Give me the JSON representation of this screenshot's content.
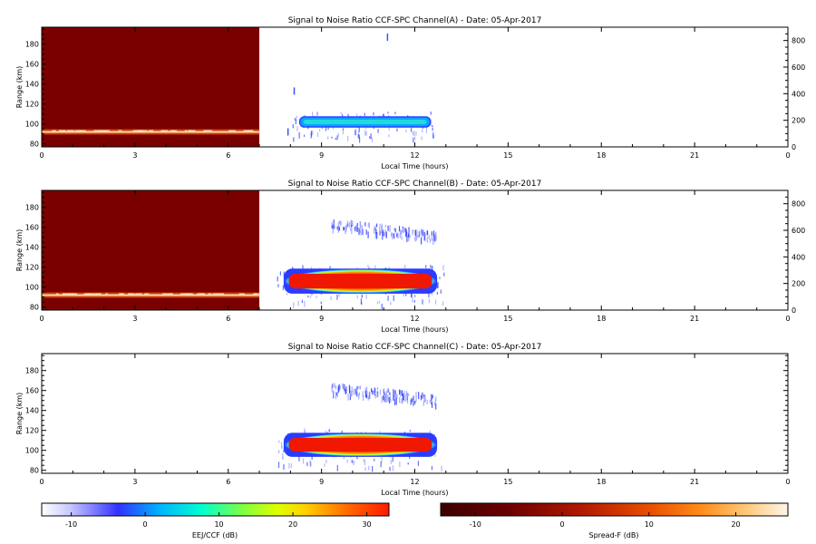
{
  "chart_data": [
    {
      "type": "heatmap",
      "title": "Signal to Noise Ratio CCF-SPC Channel(A) - Date: 05-Apr-2017",
      "xlabel": "Local Time (hours)",
      "ylabel": "Range (km)",
      "xlim": [
        0,
        24
      ],
      "ylim": [
        77,
        197
      ],
      "xticks": [
        "0",
        "3",
        "6",
        "9",
        "12",
        "15",
        "18",
        "21",
        "0"
      ],
      "yticks": [
        80,
        100,
        120,
        140,
        160,
        180
      ],
      "right_ticks": [
        0,
        200,
        400,
        600,
        800
      ],
      "spreadF_region": {
        "x": [
          0,
          7
        ],
        "band_range": 92
      },
      "eej_blob": {
        "x": [
          8.3,
          12.5
        ],
        "range": [
          97,
          107
        ],
        "peak_db": 8
      },
      "sparse_echoes": [
        {
          "x": 11.1,
          "y": 187
        },
        {
          "x": 8.1,
          "y": 133
        },
        {
          "x": 7.9,
          "y": 92
        }
      ]
    },
    {
      "type": "heatmap",
      "title": "Signal to Noise Ratio CCF-SPC Channel(B) - Date: 05-Apr-2017",
      "xlabel": "Local Time (hours)",
      "ylabel": "Range (km)",
      "xlim": [
        0,
        24
      ],
      "ylim": [
        77,
        197
      ],
      "xticks": [
        "0",
        "3",
        "6",
        "9",
        "12",
        "15",
        "18",
        "21",
        "0"
      ],
      "yticks": [
        80,
        100,
        120,
        140,
        160,
        180
      ],
      "right_ticks": [
        0,
        200,
        400,
        600,
        800
      ],
      "spreadF_region": {
        "x": [
          0,
          7
        ],
        "band_range": 92
      },
      "eej_blob": {
        "x": [
          7.8,
          12.7
        ],
        "range": [
          94,
          118
        ],
        "peak_db": 30
      },
      "upper_echoes": {
        "x": [
          9.3,
          12.7
        ],
        "range": [
          143,
          168
        ]
      }
    },
    {
      "type": "heatmap",
      "title": "Signal to Noise Ratio CCF-SPC Channel(C) - Date: 05-Apr-2017",
      "xlabel": "Local Time (hours)",
      "ylabel": "Range (km)",
      "xlim": [
        0,
        24
      ],
      "ylim": [
        77,
        197
      ],
      "xticks": [
        "0",
        "3",
        "6",
        "9",
        "12",
        "15",
        "18",
        "21",
        "0"
      ],
      "yticks": [
        80,
        100,
        120,
        140,
        160,
        180
      ],
      "eej_blob": {
        "x": [
          7.8,
          12.7
        ],
        "range": [
          94,
          117
        ],
        "peak_db": 30
      },
      "upper_echoes": {
        "x": [
          9.3,
          12.7
        ],
        "range": [
          143,
          167
        ]
      }
    }
  ],
  "colorbars": [
    {
      "label": "EEJ/CCF (dB)",
      "ticks": [
        "-10",
        "0",
        "10",
        "20",
        "30"
      ],
      "range": [
        -14,
        33
      ]
    },
    {
      "label": "Spread-F (dB)",
      "ticks": [
        "-10",
        "0",
        "10",
        "20"
      ],
      "range": [
        -14,
        26
      ]
    }
  ]
}
